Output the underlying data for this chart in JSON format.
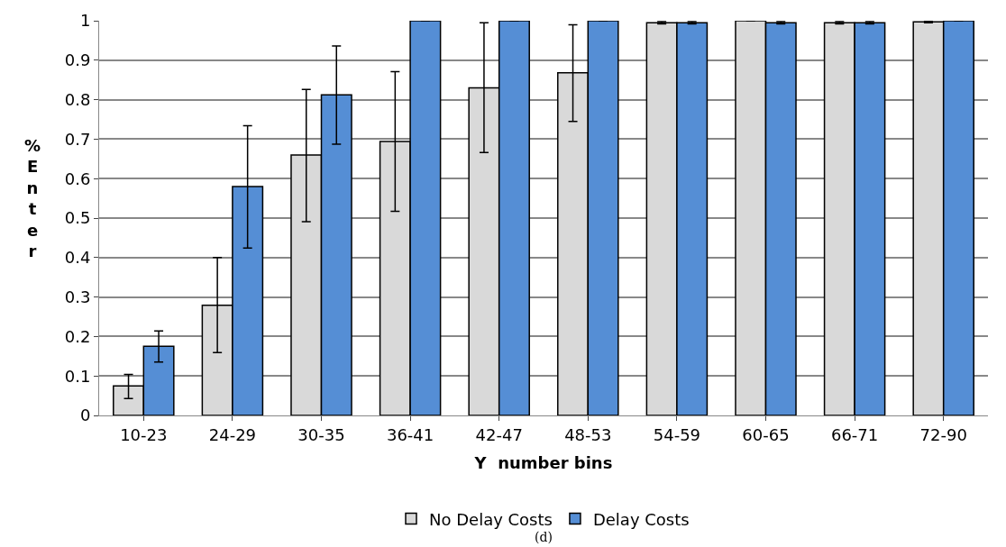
{
  "chart_data": {
    "type": "bar",
    "xlabel": "Y  number bins",
    "ylabel": "%Enter",
    "categories": [
      "10-23",
      "24-29",
      "30-35",
      "36-41",
      "42-47",
      "48-53",
      "54-59",
      "60-65",
      "66-71",
      "72-90"
    ],
    "series": [
      {
        "name": "No Delay Costs",
        "color": "#d9d9d9",
        "values": [
          0.075,
          0.279,
          0.66,
          0.694,
          0.83,
          0.868,
          0.995,
          1.0,
          0.995,
          0.997
        ],
        "errors": [
          [
            0.043,
            0.104
          ],
          [
            0.159,
            0.4
          ],
          [
            0.491,
            0.826
          ],
          [
            0.517,
            0.871
          ],
          [
            0.666,
            0.995
          ],
          [
            0.745,
            0.99
          ],
          [
            0.992,
            0.998
          ],
          null,
          [
            0.992,
            0.998
          ],
          [
            0.995,
            0.999
          ]
        ]
      },
      {
        "name": "Delay Costs",
        "color": "#558ed5",
        "values": [
          0.175,
          0.58,
          0.812,
          1.0,
          1.0,
          1.0,
          0.995,
          0.995,
          0.995,
          1.0
        ],
        "errors": [
          [
            0.135,
            0.214
          ],
          [
            0.424,
            0.734
          ],
          [
            0.687,
            0.936
          ],
          null,
          null,
          null,
          [
            0.992,
            0.998
          ],
          [
            0.992,
            0.998
          ],
          [
            0.992,
            0.998
          ],
          null
        ]
      }
    ],
    "ylim": [
      0,
      1
    ],
    "yticks": [
      0,
      0.1,
      0.2,
      0.3,
      0.4,
      0.5,
      0.6,
      0.7,
      0.8,
      0.9,
      1
    ],
    "grid": "y",
    "legend": "bottom",
    "annotations": [
      "(d)"
    ]
  }
}
